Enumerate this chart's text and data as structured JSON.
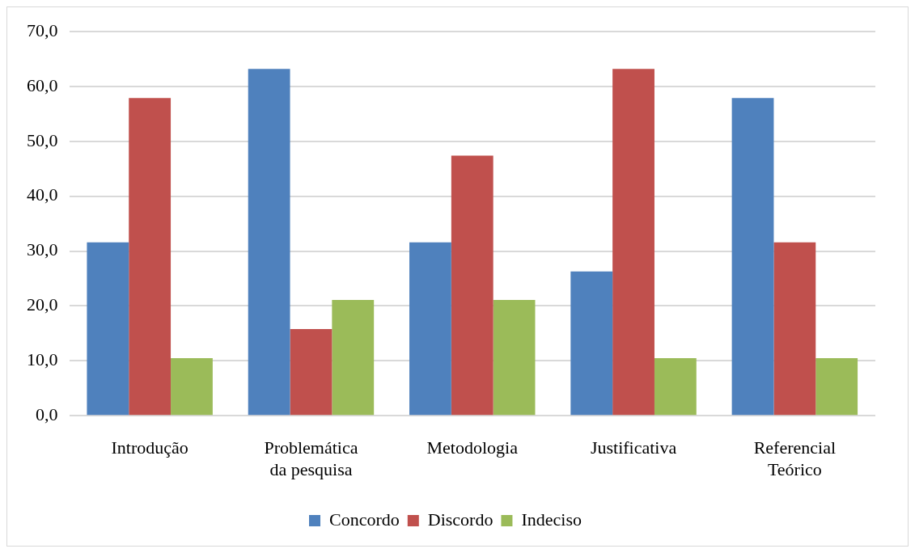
{
  "chart_data": {
    "type": "bar",
    "categories": [
      "Introdução",
      "Problemática da pesquisa",
      "Metodologia",
      "Justificativa",
      "Referencial Teórico"
    ],
    "series": [
      {
        "name": "Concordo",
        "color": "#4f81bd",
        "values": [
          31.6,
          63.2,
          31.6,
          26.3,
          57.9
        ]
      },
      {
        "name": "Discordo",
        "color": "#c0504d",
        "values": [
          57.9,
          15.8,
          47.4,
          63.2,
          31.6
        ]
      },
      {
        "name": "Indeciso",
        "color": "#9bbb59",
        "values": [
          10.5,
          21.1,
          21.1,
          10.5,
          10.5
        ]
      }
    ],
    "ylim": [
      0,
      70
    ],
    "yticks": [
      {
        "value": 0,
        "label": "0,0"
      },
      {
        "value": 10,
        "label": "10,0"
      },
      {
        "value": 20,
        "label": "20,0"
      },
      {
        "value": 30,
        "label": "30,0"
      },
      {
        "value": 40,
        "label": "40,0"
      },
      {
        "value": 50,
        "label": "50,0"
      },
      {
        "value": 60,
        "label": "60,0"
      },
      {
        "value": 70,
        "label": "70,0"
      }
    ],
    "grid": "y",
    "legend": "bottom"
  }
}
